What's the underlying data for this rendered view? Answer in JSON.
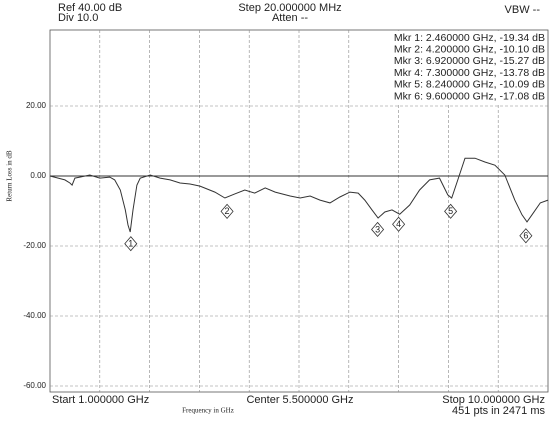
{
  "chart_data": {
    "type": "line",
    "header": {
      "ref": "Ref 40.00 dB",
      "div": "Div 10.0",
      "step": "Step 20.000000 MHz",
      "atten": "Atten --",
      "vbw": "VBW --"
    },
    "footer": {
      "start": "Start 1.000000 GHz",
      "center": "Center 5.500000 GHz",
      "stop": "Stop 10.000000 GHz",
      "points": "451 pts in 2471 ms"
    },
    "xlabel": "Frequency in GHz",
    "ylabel": "Return Loss in dB",
    "xlim": [
      1,
      10
    ],
    "ylim": [
      -60,
      40
    ],
    "yticks": [
      {
        "value": 20,
        "label": "20.00"
      },
      {
        "value": 0,
        "label": "0.00"
      },
      {
        "value": -20,
        "label": "-20.00"
      },
      {
        "value": -40,
        "label": "-40.00"
      },
      {
        "value": -60,
        "label": "-60.00"
      }
    ],
    "grid": true,
    "color": "#333333",
    "x": [
      1.0,
      1.27,
      1.36,
      1.4,
      1.45,
      1.54,
      1.72,
      1.9,
      2.08,
      2.17,
      2.27,
      2.36,
      2.41,
      2.45,
      2.5,
      2.57,
      2.63,
      2.81,
      2.99,
      3.17,
      3.35,
      3.53,
      3.71,
      3.98,
      4.16,
      4.34,
      4.52,
      4.7,
      4.89,
      5.07,
      5.34,
      5.52,
      5.7,
      5.88,
      6.06,
      6.24,
      6.42,
      6.57,
      6.69,
      6.82,
      6.93,
      7.05,
      7.18,
      7.32,
      7.5,
      7.68,
      7.86,
      8.04,
      8.19,
      8.26,
      8.37,
      8.5,
      8.68,
      8.86,
      9.04,
      9.22,
      9.4,
      9.53,
      9.62,
      9.71,
      9.86,
      10.0
    ],
    "values": [
      0,
      -1.1,
      -2.0,
      -2.6,
      -0.6,
      -0.3,
      0.3,
      -0.6,
      -0.3,
      -1.1,
      -4.0,
      -9.7,
      -14.0,
      -16.0,
      -9.7,
      -2.6,
      -0.6,
      0.3,
      -0.6,
      -1.1,
      -2.0,
      -2.3,
      -2.9,
      -4.6,
      -6.3,
      -5.1,
      -4.0,
      -4.9,
      -3.4,
      -4.6,
      -5.7,
      -6.3,
      -5.7,
      -6.9,
      -7.7,
      -6.0,
      -4.6,
      -4.9,
      -6.9,
      -9.7,
      -12.0,
      -10.3,
      -9.7,
      -10.9,
      -8.3,
      -4.0,
      -1.1,
      -0.6,
      -5.4,
      -6.3,
      -1.1,
      5.1,
      5.1,
      4.0,
      3.1,
      0.3,
      -6.9,
      -11.1,
      -13.1,
      -11.1,
      -7.7,
      -6.9
    ],
    "markers": [
      {
        "label": "1",
        "x": 2.46,
        "y": -19.34,
        "text": "Mkr 1: 2.460000 GHz, -19.34 dB"
      },
      {
        "label": "2",
        "x": 4.2,
        "y": -10.1,
        "text": "Mkr 2: 4.200000 GHz, -10.10 dB"
      },
      {
        "label": "3",
        "x": 6.92,
        "y": -15.27,
        "text": "Mkr 3: 6.920000 GHz, -15.27 dB"
      },
      {
        "label": "4",
        "x": 7.3,
        "y": -13.78,
        "text": "Mkr 4: 7.300000 GHz, -13.78 dB"
      },
      {
        "label": "5",
        "x": 8.24,
        "y": -10.09,
        "text": "Mkr 5: 8.240000 GHz, -10.09 dB"
      },
      {
        "label": "6",
        "x": 9.6,
        "y": -17.08,
        "text": "Mkr 6: 9.600000 GHz, -17.08 dB"
      }
    ]
  }
}
